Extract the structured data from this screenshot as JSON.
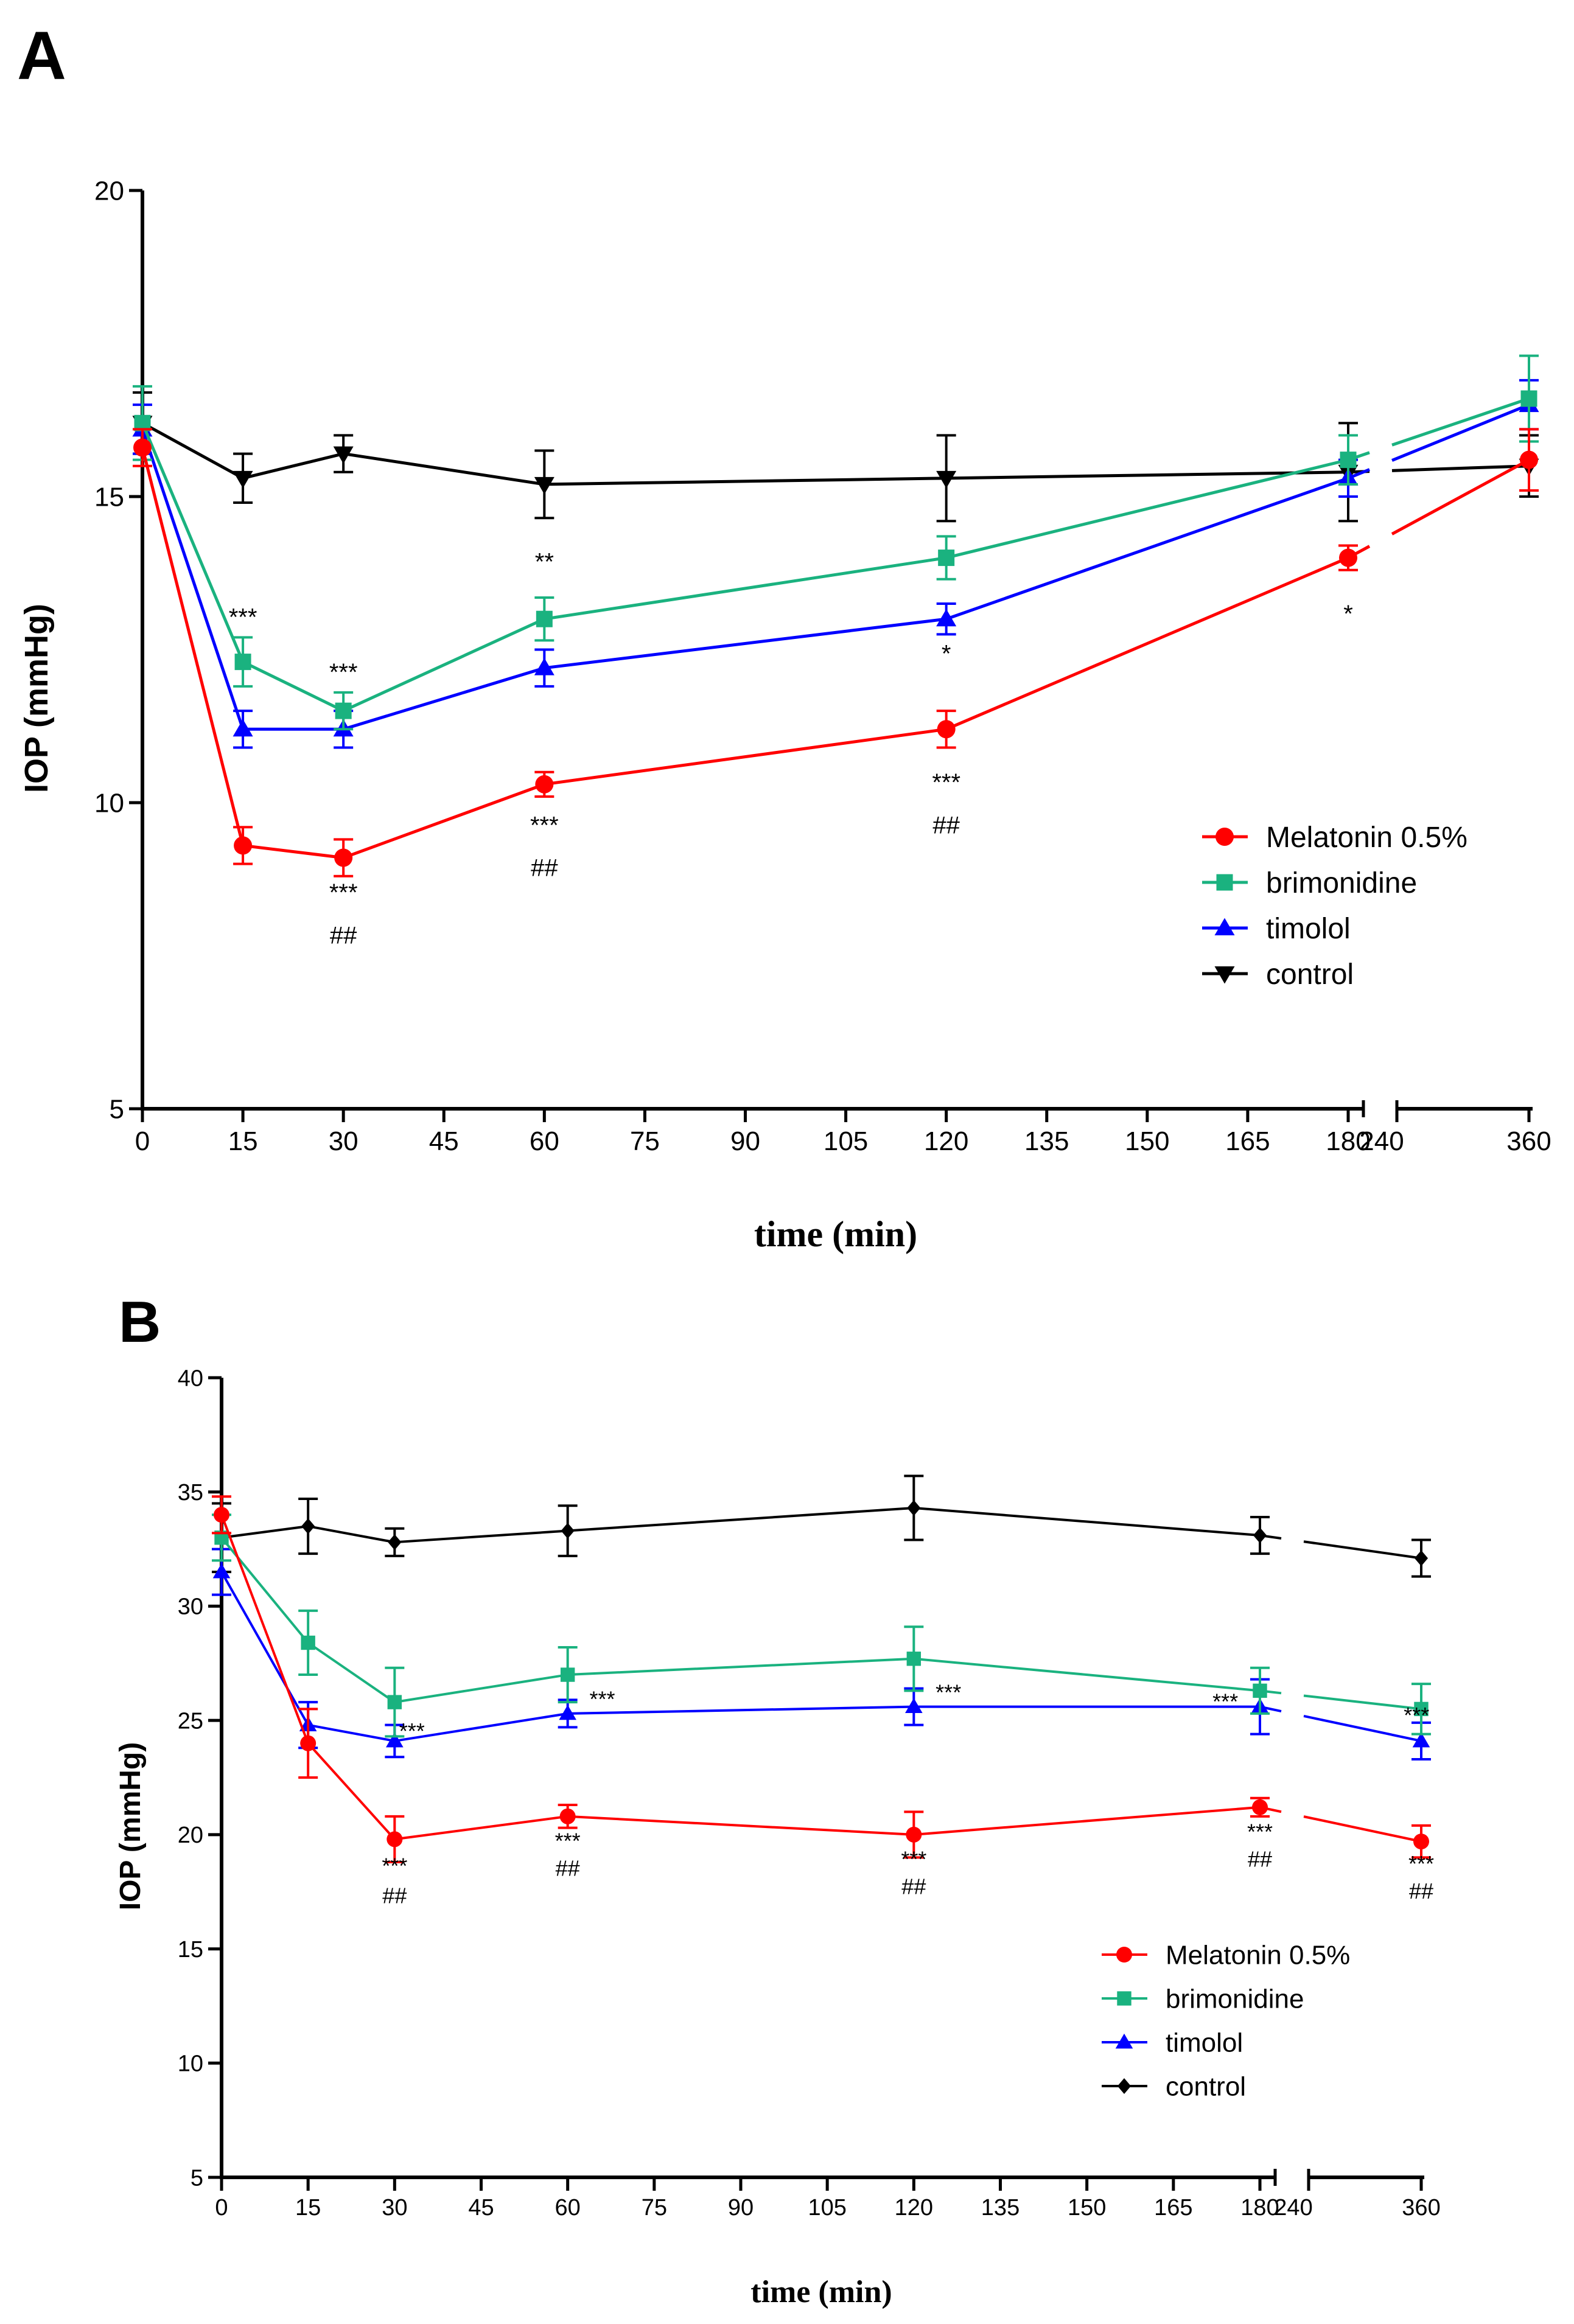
{
  "colors": {
    "Melatonin 0.5%": "#ff0000",
    "brimonidine": "#1ab27f",
    "timolol": "#0000ff",
    "control": "#000000"
  },
  "chart_data": [
    {
      "panel": "A",
      "type": "line",
      "xlabel": "time (min)",
      "ylabel": "IOP (mmHg)",
      "ylim": [
        5,
        20
      ],
      "yticks": [
        "5",
        "10",
        "15",
        "20"
      ],
      "x": [
        0,
        15,
        30,
        60,
        120,
        180,
        360
      ],
      "xticks": [
        "0",
        "15",
        "30",
        "45",
        "60",
        "75",
        "90",
        "105",
        "120",
        "135",
        "150",
        "165",
        "180",
        "240",
        "360"
      ],
      "axis_break": "between 180 and 240",
      "series": [
        {
          "name": "Melatonin 0.5%",
          "marker": "circle",
          "values": [
            15.8,
            9.3,
            9.1,
            10.3,
            11.2,
            14.0,
            15.6
          ],
          "errors": [
            0.3,
            0.3,
            0.3,
            0.2,
            0.3,
            0.2,
            0.5
          ]
        },
        {
          "name": "brimonidine",
          "marker": "square",
          "values": [
            16.2,
            12.3,
            11.5,
            13.0,
            14.0,
            15.6,
            16.6
          ],
          "errors": [
            0.6,
            0.4,
            0.3,
            0.35,
            0.35,
            0.4,
            0.7
          ]
        },
        {
          "name": "timolol",
          "marker": "triangle-up",
          "values": [
            16.1,
            11.2,
            11.2,
            12.2,
            13.0,
            15.3,
            16.5
          ],
          "errors": [
            0.4,
            0.3,
            0.3,
            0.3,
            0.25,
            0.3,
            0.4
          ]
        },
        {
          "name": "control",
          "marker": "triangle-down",
          "values": [
            16.2,
            15.3,
            15.7,
            15.2,
            15.3,
            15.4,
            15.5
          ],
          "errors": [
            0.5,
            0.4,
            0.3,
            0.55,
            0.7,
            0.8,
            0.5
          ]
        }
      ],
      "annotations": [
        {
          "x": 15,
          "y": 12.9,
          "text": "***"
        },
        {
          "x": 30,
          "y": 12.0,
          "text": "***"
        },
        {
          "x": 60,
          "y": 13.8,
          "text": "**"
        },
        {
          "x": 120,
          "y": 12.3,
          "text": "*"
        },
        {
          "x": 180,
          "y": 12.95,
          "text": "*"
        },
        {
          "x": 30,
          "y": 8.4,
          "text": "***"
        },
        {
          "x": 30,
          "y": 7.7,
          "text": "##"
        },
        {
          "x": 60,
          "y": 9.5,
          "text": "***"
        },
        {
          "x": 60,
          "y": 8.8,
          "text": "##"
        },
        {
          "x": 120,
          "y": 10.2,
          "text": "***"
        },
        {
          "x": 120,
          "y": 9.5,
          "text": "##"
        }
      ],
      "legend": [
        "Melatonin 0.5%",
        "brimonidine",
        "timolol",
        "control"
      ],
      "legend_position": "lower-right"
    },
    {
      "panel": "B",
      "type": "line",
      "xlabel": "time (min)",
      "ylabel": "IOP (mmHg)",
      "ylim": [
        5,
        40
      ],
      "yticks": [
        "5",
        "10",
        "15",
        "20",
        "25",
        "30",
        "35",
        "40"
      ],
      "x": [
        0,
        15,
        30,
        60,
        120,
        180,
        360
      ],
      "xticks": [
        "0",
        "15",
        "30",
        "45",
        "60",
        "75",
        "90",
        "105",
        "120",
        "135",
        "150",
        "165",
        "180",
        "240",
        "360"
      ],
      "axis_break": "between 180 and 240",
      "series": [
        {
          "name": "Melatonin 0.5%",
          "marker": "circle",
          "values": [
            34.0,
            24.0,
            19.8,
            20.8,
            20.0,
            21.2,
            19.7
          ],
          "errors": [
            0.8,
            1.5,
            1.0,
            0.5,
            1.0,
            0.4,
            0.7
          ]
        },
        {
          "name": "brimonidine",
          "marker": "square",
          "values": [
            33.0,
            28.4,
            25.8,
            27.0,
            27.7,
            26.3,
            25.5
          ],
          "errors": [
            1.0,
            1.4,
            1.5,
            1.2,
            1.4,
            1.0,
            1.1
          ]
        },
        {
          "name": "timolol",
          "marker": "triangle-up",
          "values": [
            31.5,
            24.8,
            24.1,
            25.3,
            25.6,
            25.6,
            24.1
          ],
          "errors": [
            1.0,
            1.0,
            0.7,
            0.6,
            0.8,
            1.2,
            0.8
          ]
        },
        {
          "name": "control",
          "marker": "diamond",
          "values": [
            33.0,
            33.5,
            32.8,
            33.3,
            34.3,
            33.1,
            32.1
          ],
          "errors": [
            1.5,
            1.2,
            0.6,
            1.1,
            1.4,
            0.8,
            0.8
          ]
        }
      ],
      "annotations": [
        {
          "x": 33,
          "y": 24.2,
          "text": "***"
        },
        {
          "x": 66,
          "y": 25.6,
          "text": "***"
        },
        {
          "x": 126,
          "y": 25.9,
          "text": "***"
        },
        {
          "x": 174,
          "y": 25.5,
          "text": "***"
        },
        {
          "x": 355,
          "y": 24.9,
          "text": "***"
        },
        {
          "x": 30,
          "y": 18.3,
          "text": "***"
        },
        {
          "x": 30,
          "y": 17.0,
          "text": "##"
        },
        {
          "x": 60,
          "y": 19.4,
          "text": "***"
        },
        {
          "x": 60,
          "y": 18.2,
          "text": "##"
        },
        {
          "x": 120,
          "y": 18.6,
          "text": "***"
        },
        {
          "x": 120,
          "y": 17.4,
          "text": "##"
        },
        {
          "x": 180,
          "y": 19.8,
          "text": "***"
        },
        {
          "x": 180,
          "y": 18.6,
          "text": "##"
        },
        {
          "x": 360,
          "y": 18.4,
          "text": "***"
        },
        {
          "x": 360,
          "y": 17.2,
          "text": "##"
        }
      ],
      "legend": [
        "Melatonin 0.5%",
        "brimonidine",
        "timolol",
        "control"
      ],
      "legend_position": "lower-right"
    }
  ]
}
